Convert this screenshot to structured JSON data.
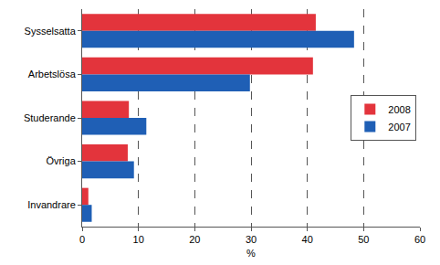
{
  "chart_data": {
    "type": "bar",
    "orientation": "horizontal",
    "categories": [
      "Sysselsatta",
      "Arbetslösa",
      "Studerande",
      "Övriga",
      "Invandrare"
    ],
    "series": [
      {
        "name": "2008",
        "color": "#e3343c",
        "values": [
          41.5,
          41.0,
          8.3,
          8.1,
          1.1
        ]
      },
      {
        "name": "2007",
        "color": "#1f5fb5",
        "values": [
          48.3,
          29.8,
          11.4,
          9.2,
          1.7
        ]
      }
    ],
    "x_label": "%",
    "xlim": [
      0,
      60
    ],
    "xticks": [
      0,
      10,
      20,
      30,
      40,
      50,
      60
    ],
    "grid": true,
    "legend": "right"
  }
}
